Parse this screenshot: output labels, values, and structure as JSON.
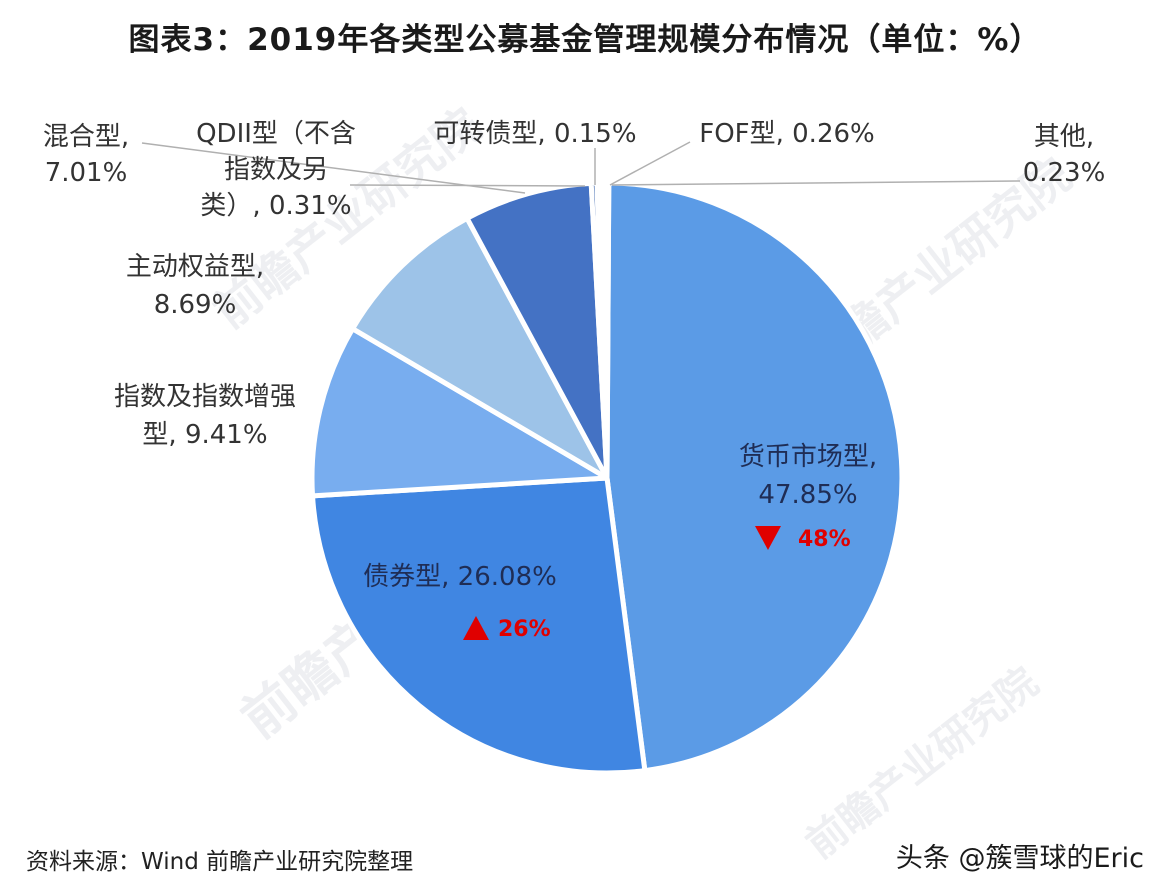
{
  "chart_data": {
    "type": "pie",
    "title": "图表3：2019年各类型公募基金管理规模分布情况（单位：%）",
    "slices": [
      {
        "label_lines": [
          "货币市场型,",
          "47.85%"
        ],
        "name": "货币市场型",
        "value": 47.85,
        "color": "#5b9be6",
        "change": "48%",
        "change_dir": "down"
      },
      {
        "label_lines": [
          "债券型, 26.08%"
        ],
        "name": "债券型",
        "value": 26.08,
        "color": "#4086e2",
        "change": "26%",
        "change_dir": "up"
      },
      {
        "label_lines": [
          "指数及指数增强",
          "型, 9.41%"
        ],
        "name": "指数及指数增强型",
        "value": 9.41,
        "color": "#78adef"
      },
      {
        "label_lines": [
          "主动权益型,",
          "8.69%"
        ],
        "name": "主动权益型",
        "value": 8.69,
        "color": "#9dc3e8"
      },
      {
        "label_lines": [
          "混合型,",
          "7.01%"
        ],
        "name": "混合型",
        "value": 7.01,
        "color": "#4472c4"
      },
      {
        "label_lines": [
          "QDII型（不含",
          "指数及另",
          "类）, 0.31%"
        ],
        "name": "QDII型（不含指数及另类）",
        "value": 0.31,
        "color": "#2e5ca8"
      },
      {
        "label_lines": [
          "可转债型, 0.15%"
        ],
        "name": "可转债型",
        "value": 0.15,
        "color": "#3a6cc0"
      },
      {
        "label_lines": [
          "FOF型, 0.26%"
        ],
        "name": "FOF型",
        "value": 0.26,
        "color": "#5a8ad8"
      },
      {
        "label_lines": [
          "其他,",
          "0.23%"
        ],
        "name": "其他",
        "value": 0.23,
        "color": "#6d9ae0"
      }
    ],
    "colors": {
      "change_marker": "#e00000",
      "slice_border": "#ffffff",
      "leader_line": "#b0b0b0"
    }
  },
  "watermark": {
    "text": "前瞻产业研究院"
  },
  "source": "资料来源：Wind  前瞻产业研究院整理",
  "credit": "头条 @簇雪球的Eric"
}
